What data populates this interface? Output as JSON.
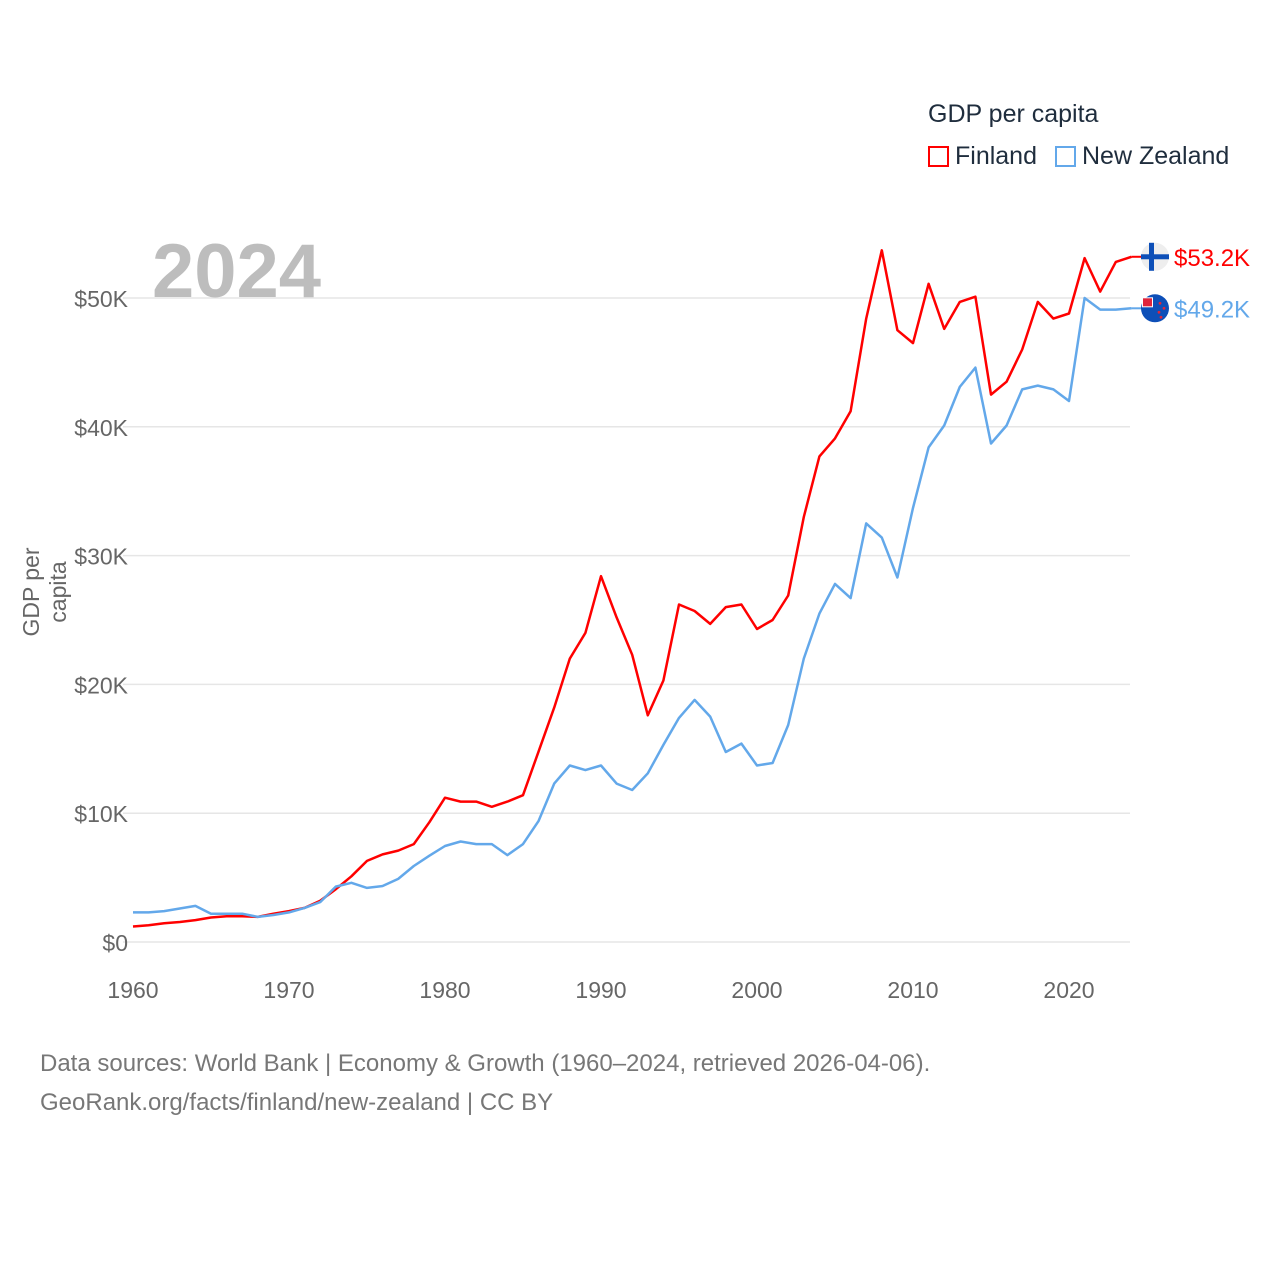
{
  "chart_data": {
    "type": "line",
    "title": "GDP per capita",
    "xlabel": "",
    "ylabel": "GDP per capita",
    "xlim": [
      1960,
      2024
    ],
    "ylim": [
      0,
      55000
    ],
    "grid": true,
    "legend_placement": "top-right",
    "x_ticks": [
      "1960",
      "1970",
      "1980",
      "1990",
      "2000",
      "2010",
      "2020"
    ],
    "y_ticks": [
      {
        "value": 0,
        "label": "$0"
      },
      {
        "value": 10000,
        "label": "$10K"
      },
      {
        "value": 20000,
        "label": "$20K"
      },
      {
        "value": 30000,
        "label": "$30K"
      },
      {
        "value": 40000,
        "label": "$40K"
      },
      {
        "value": 50000,
        "label": "$50K"
      }
    ],
    "highlight_year": "2024",
    "x": [
      1960,
      1961,
      1962,
      1963,
      1964,
      1965,
      1966,
      1967,
      1968,
      1969,
      1970,
      1971,
      1972,
      1973,
      1974,
      1975,
      1976,
      1977,
      1978,
      1979,
      1980,
      1981,
      1982,
      1983,
      1984,
      1985,
      1986,
      1987,
      1988,
      1989,
      1990,
      1991,
      1992,
      1993,
      1994,
      1995,
      1996,
      1997,
      1998,
      1999,
      2000,
      2001,
      2002,
      2003,
      2004,
      2005,
      2006,
      2007,
      2008,
      2009,
      2010,
      2011,
      2012,
      2013,
      2014,
      2015,
      2016,
      2017,
      2018,
      2019,
      2020,
      2021,
      2022,
      2023,
      2024
    ],
    "series": [
      {
        "name": "Finland",
        "color": "#ff0000",
        "end_label": "$53.2K",
        "flag": "finland-flag",
        "values": [
          1200,
          1300,
          1450,
          1550,
          1700,
          1900,
          2000,
          2000,
          1950,
          2200,
          2400,
          2650,
          3200,
          4100,
          5100,
          6300,
          6800,
          7100,
          7600,
          9300,
          11200,
          10900,
          10900,
          10500,
          10900,
          11400,
          14800,
          18200,
          22000,
          24000,
          28400,
          25200,
          22300,
          17600,
          20300,
          26200,
          25700,
          24700,
          26000,
          26200,
          24300,
          25000,
          26900,
          33000,
          37700,
          39100,
          41200,
          48400,
          53700,
          47500,
          46500,
          51100,
          47600,
          49700,
          50100,
          42500,
          43500,
          46000,
          49700,
          48400,
          48800,
          53100,
          50500,
          52800,
          53200
        ]
      },
      {
        "name": "New Zealand",
        "color": "#63a8ea",
        "end_label": "$49.2K",
        "flag": "new-zealand-flag",
        "values": [
          2300,
          2300,
          2400,
          2600,
          2800,
          2200,
          2200,
          2200,
          1950,
          2100,
          2300,
          2650,
          3100,
          4300,
          4600,
          4200,
          4350,
          4900,
          5900,
          6700,
          7450,
          7800,
          7600,
          7600,
          6750,
          7600,
          9400,
          12300,
          13700,
          13350,
          13700,
          12300,
          11800,
          13100,
          15300,
          17400,
          18800,
          17500,
          14750,
          15400,
          13700,
          13900,
          16850,
          22000,
          25500,
          27800,
          26700,
          32500,
          31400,
          28300,
          33700,
          38400,
          40100,
          43100,
          44600,
          38700,
          40100,
          42900,
          43200,
          42900,
          42000,
          50000,
          49100,
          49100,
          49200
        ]
      }
    ]
  },
  "footer": {
    "line1": "Data sources: World Bank | Economy & Growth (1960–2024, retrieved 2026-04-06).",
    "line2": "GeoRank.org/facts/finland/new-zealand | CC BY"
  }
}
